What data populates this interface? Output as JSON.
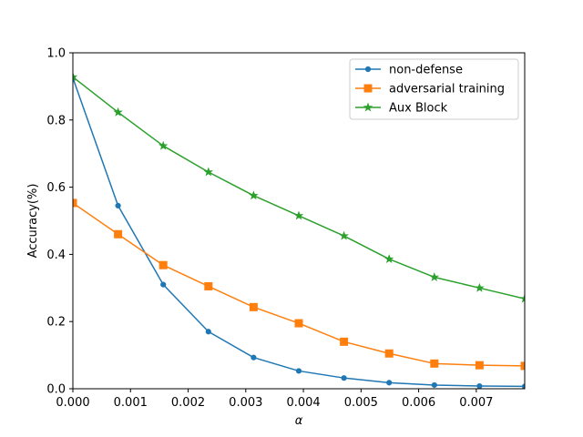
{
  "chart_data": {
    "type": "line",
    "title": "",
    "xlabel": "α",
    "ylabel": "Accuracy(%)",
    "xlim": [
      0,
      0.00784
    ],
    "ylim": [
      0,
      1.0
    ],
    "xticks": [
      "0.000",
      "0.001",
      "0.002",
      "0.003",
      "0.004",
      "0.005",
      "0.006",
      "0.007"
    ],
    "xtick_values": [
      0,
      0.001,
      0.002,
      0.003,
      0.004,
      0.005,
      0.006,
      0.007
    ],
    "yticks": [
      "0.0",
      "0.2",
      "0.4",
      "0.6",
      "0.8",
      "1.0"
    ],
    "ytick_values": [
      0,
      0.2,
      0.4,
      0.6,
      0.8,
      1.0
    ],
    "grid": false,
    "legend_position": "top-right",
    "x": [
      0,
      0.000784,
      0.001568,
      0.002352,
      0.003136,
      0.00392,
      0.004704,
      0.005488,
      0.006272,
      0.007056,
      0.00784
    ],
    "series": [
      {
        "name": "non-defense",
        "color": "#1f77b4",
        "marker": "circle",
        "values": [
          0.925,
          0.545,
          0.31,
          0.17,
          0.093,
          0.053,
          0.032,
          0.018,
          0.011,
          0.008,
          0.007
        ]
      },
      {
        "name": "adversarial training",
        "color": "#ff7f0e",
        "marker": "square",
        "values": [
          0.553,
          0.46,
          0.368,
          0.305,
          0.243,
          0.195,
          0.14,
          0.105,
          0.075,
          0.07,
          0.068
        ]
      },
      {
        "name": "Aux Block",
        "color": "#2ca02c",
        "marker": "star",
        "values": [
          0.928,
          0.823,
          0.723,
          0.645,
          0.575,
          0.515,
          0.455,
          0.386,
          0.332,
          0.3,
          0.268
        ]
      }
    ]
  }
}
